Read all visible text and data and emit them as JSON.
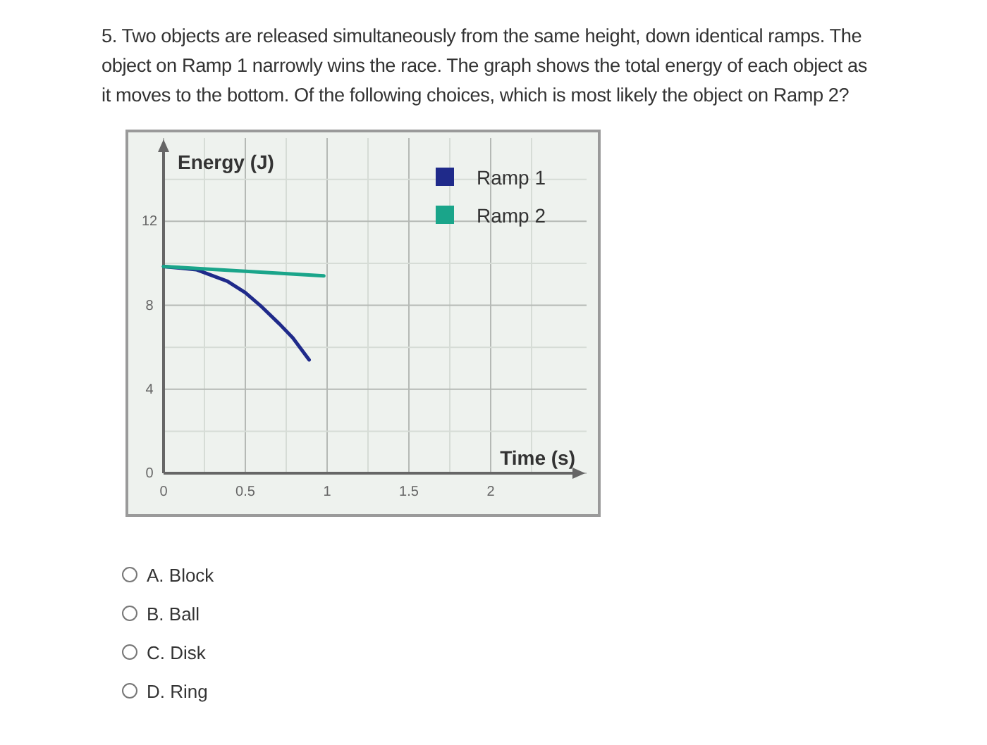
{
  "chart_data": {
    "type": "line",
    "title": "5. Two objects are released simultaneously from the same height, down identical ramps. The object on Ramp 1 narrowly wins the race. The graph shows the total energy of each object as it moves to the bottom. Of the following choices, which is most likely the object on Ramp 2?",
    "xlabel": "Time (s)",
    "ylabel": "Energy (J)",
    "series": [
      {
        "name": "Ramp 1",
        "color": "#1f2a8a",
        "x": [
          0,
          0.2,
          0.39,
          0.5,
          0.59,
          0.71,
          0.79,
          0.89
        ],
        "values": [
          9.85,
          9.7,
          9.15,
          8.6,
          8.0,
          7.1,
          6.45,
          5.4
        ]
      },
      {
        "name": "Ramp 2",
        "color": "#1aa58a",
        "x": [
          0,
          0.98
        ],
        "values": [
          9.85,
          9.4
        ]
      }
    ],
    "xlim": [
      0,
      2.5
    ],
    "ylim": [
      0,
      15.3
    ],
    "xticks": [
      0,
      {
        "value": 0.25,
        "label": null
      },
      0.5,
      {
        "value": 0.75,
        "label": null
      },
      1,
      {
        "value": 1.25,
        "label": null
      },
      1.5,
      {
        "value": 1.75,
        "label": null
      },
      2,
      {
        "value": 2.25,
        "label": null
      }
    ],
    "yticks": [
      0,
      {
        "value": 2,
        "label": null
      },
      4,
      {
        "value": 6,
        "label": null
      },
      8,
      {
        "value": 10,
        "label": null
      },
      12,
      {
        "value": 14,
        "label": null
      }
    ],
    "grid": true,
    "legend": "top right",
    "marker": "none",
    "line_style": "solid",
    "annotations": [
      "A. Block",
      "B. Ball",
      "C. Disk",
      "D. Ring"
    ]
  }
}
